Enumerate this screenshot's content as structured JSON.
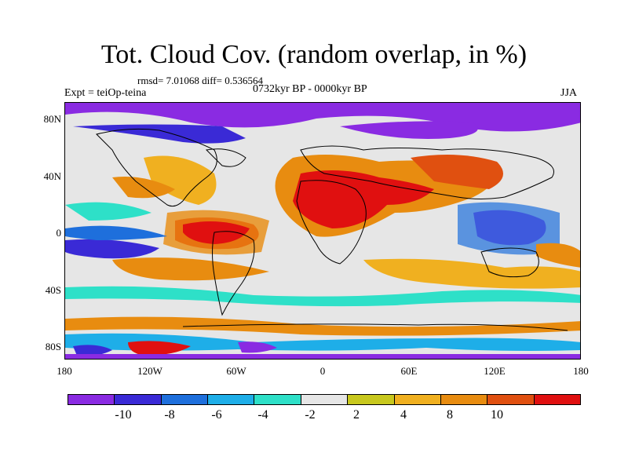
{
  "title": "Tot. Cloud Cov. (random overlap, in %)",
  "stats": "rmsd= 7.01068 diff= 0.536564",
  "experiment": "Expt = teiOp-teina",
  "period": "0732kyr BP - 0000kyr BP",
  "season": "JJA",
  "y_axis_labels": [
    "80N",
    "40N",
    "0",
    "40S",
    "80S"
  ],
  "x_axis_labels": [
    "180",
    "120W",
    "60W",
    "0",
    "60E",
    "120E",
    "180"
  ],
  "colorbar": {
    "colors": [
      "#8a2be2",
      "#3a2ad6",
      "#1e6fdc",
      "#1eaee8",
      "#2ee0c8",
      "#e6e6e6",
      "#c8c81e",
      "#f0b020",
      "#e88c10",
      "#e05010",
      "#e01010"
    ],
    "labels": [
      "-10",
      "-8",
      "-6",
      "-4",
      "-2",
      "2",
      "4",
      "8",
      "10"
    ]
  }
}
